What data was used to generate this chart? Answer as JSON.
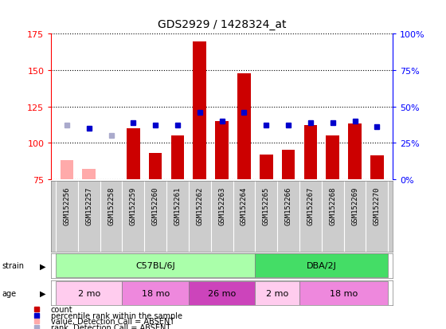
{
  "title": "GDS2929 / 1428324_at",
  "samples": [
    "GSM152256",
    "GSM152257",
    "GSM152258",
    "GSM152259",
    "GSM152260",
    "GSM152261",
    "GSM152262",
    "GSM152263",
    "GSM152264",
    "GSM152265",
    "GSM152266",
    "GSM152267",
    "GSM152268",
    "GSM152269",
    "GSM152270"
  ],
  "count_values": [
    88,
    82,
    null,
    110,
    93,
    105,
    170,
    115,
    148,
    92,
    95,
    112,
    105,
    113,
    91
  ],
  "count_absent": [
    true,
    true,
    false,
    false,
    false,
    false,
    false,
    false,
    false,
    false,
    false,
    false,
    false,
    false,
    false
  ],
  "rank_values": [
    112,
    110,
    105,
    114,
    112,
    112,
    121,
    115,
    121,
    112,
    112,
    114,
    114,
    115,
    111
  ],
  "rank_absent": [
    true,
    false,
    true,
    false,
    false,
    false,
    false,
    false,
    false,
    false,
    false,
    false,
    false,
    false,
    false
  ],
  "ylim": [
    75,
    175
  ],
  "yticks": [
    75,
    100,
    125,
    150,
    175
  ],
  "y2lim": [
    0,
    100
  ],
  "y2ticks": [
    0,
    25,
    50,
    75,
    100
  ],
  "bar_color": "#cc0000",
  "bar_absent_color": "#ffaaaa",
  "rank_color": "#0000cc",
  "rank_absent_color": "#aaaacc",
  "plot_bg": "#ffffff",
  "xtick_bg": "#cccccc",
  "strain_labels": [
    {
      "label": "C57BL/6J",
      "start": 0,
      "end": 8,
      "color": "#aaffaa"
    },
    {
      "label": "DBA/2J",
      "start": 9,
      "end": 14,
      "color": "#44dd66"
    }
  ],
  "age_labels": [
    {
      "label": "2 mo",
      "start": 0,
      "end": 2,
      "color": "#ffccee"
    },
    {
      "label": "18 mo",
      "start": 3,
      "end": 5,
      "color": "#ee88dd"
    },
    {
      "label": "26 mo",
      "start": 6,
      "end": 8,
      "color": "#cc44bb"
    },
    {
      "label": "2 mo",
      "start": 9,
      "end": 10,
      "color": "#ffccee"
    },
    {
      "label": "18 mo",
      "start": 11,
      "end": 14,
      "color": "#ee88dd"
    }
  ],
  "legend": [
    {
      "label": "count",
      "color": "#cc0000"
    },
    {
      "label": "percentile rank within the sample",
      "color": "#0000cc"
    },
    {
      "label": "value, Detection Call = ABSENT",
      "color": "#ffaaaa"
    },
    {
      "label": "rank, Detection Call = ABSENT",
      "color": "#aaaacc"
    }
  ],
  "fig_width": 5.6,
  "fig_height": 4.14,
  "dpi": 100
}
